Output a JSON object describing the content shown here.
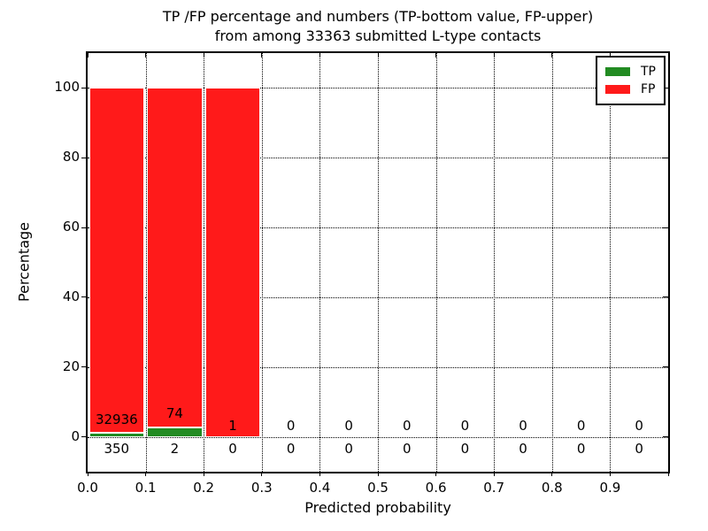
{
  "title": {
    "line1": "TP /FP percentage and numbers (TP-bottom value, FP-upper)",
    "line2": "from among 33363 submitted L-type contacts"
  },
  "axes": {
    "xlabel": "Predicted probability",
    "ylabel": "Percentage",
    "xtick_labels": [
      "0.0",
      "0.1",
      "0.2",
      "0.3",
      "0.4",
      "0.5",
      "0.6",
      "0.7",
      "0.8",
      "0.9"
    ],
    "ytick_labels": [
      "0",
      "20",
      "40",
      "60",
      "80",
      "100"
    ]
  },
  "legend": {
    "items": [
      {
        "label": "TP",
        "color": "#228b22"
      },
      {
        "label": "FP",
        "color": "#ff1a1a"
      }
    ]
  },
  "chart_data": {
    "type": "bar",
    "stacked": true,
    "title": "TP /FP percentage and numbers (TP-bottom value, FP-upper) from among 33363 submitted L-type contacts",
    "xlabel": "Predicted probability",
    "ylabel": "Percentage",
    "xlim": [
      0,
      1
    ],
    "ylim": [
      -10,
      110
    ],
    "grid": "dotted",
    "legend_position": "upper right",
    "total_submitted": 33363,
    "bin_width": 0.1,
    "annotation_note": "FP count printed above zero line, TP count printed below zero line, at each bin center",
    "series": [
      {
        "name": "TP",
        "color": "#228b22"
      },
      {
        "name": "FP",
        "color": "#ff1a1a"
      }
    ],
    "bins": [
      {
        "x_start": 0.0,
        "x_end": 0.1,
        "tp_count": 350,
        "fp_count": 32936,
        "tp_pct": 1.05,
        "fp_pct": 98.95
      },
      {
        "x_start": 0.1,
        "x_end": 0.2,
        "tp_count": 2,
        "fp_count": 74,
        "tp_pct": 2.63,
        "fp_pct": 97.37
      },
      {
        "x_start": 0.2,
        "x_end": 0.3,
        "tp_count": 0,
        "fp_count": 1,
        "tp_pct": 0,
        "fp_pct": 100
      },
      {
        "x_start": 0.3,
        "x_end": 0.4,
        "tp_count": 0,
        "fp_count": 0,
        "tp_pct": 0,
        "fp_pct": 0
      },
      {
        "x_start": 0.4,
        "x_end": 0.5,
        "tp_count": 0,
        "fp_count": 0,
        "tp_pct": 0,
        "fp_pct": 0
      },
      {
        "x_start": 0.5,
        "x_end": 0.6,
        "tp_count": 0,
        "fp_count": 0,
        "tp_pct": 0,
        "fp_pct": 0
      },
      {
        "x_start": 0.6,
        "x_end": 0.7,
        "tp_count": 0,
        "fp_count": 0,
        "tp_pct": 0,
        "fp_pct": 0
      },
      {
        "x_start": 0.7,
        "x_end": 0.8,
        "tp_count": 0,
        "fp_count": 0,
        "tp_pct": 0,
        "fp_pct": 0
      },
      {
        "x_start": 0.8,
        "x_end": 0.9,
        "tp_count": 0,
        "fp_count": 0,
        "tp_pct": 0,
        "fp_pct": 0
      },
      {
        "x_start": 0.9,
        "x_end": 1.0,
        "tp_count": 0,
        "fp_count": 0,
        "tp_pct": 0,
        "fp_pct": 0
      }
    ]
  }
}
